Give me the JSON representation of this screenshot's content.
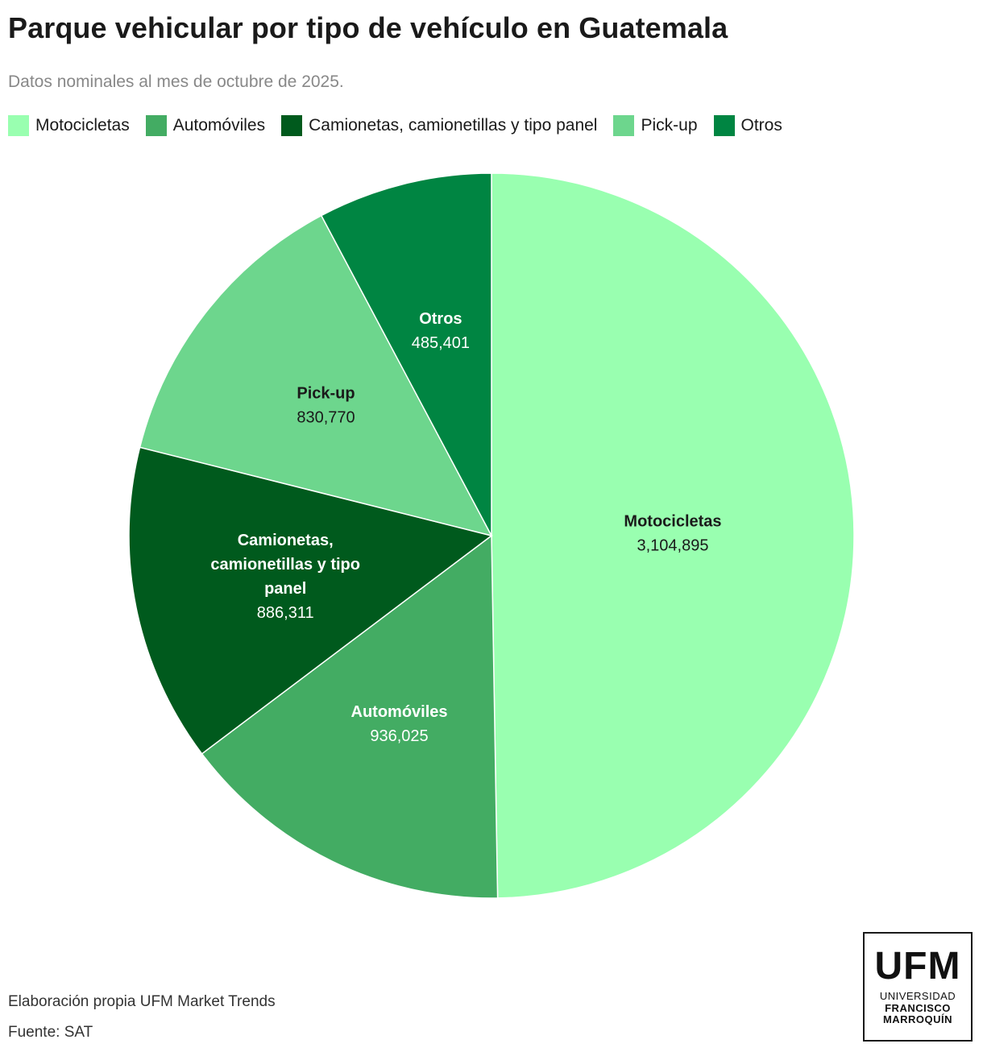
{
  "header": {
    "title": "Parque vehicular por tipo de vehículo en Guatemala",
    "subtitle": "Datos nominales al mes de octubre de 2025."
  },
  "chart_data": {
    "type": "pie",
    "title": "Parque vehicular por tipo de vehículo en Guatemala",
    "subtitle": "Datos nominales al mes de octubre de 2025.",
    "legend_position": "top-left",
    "slices": [
      {
        "name": "Motocicletas",
        "label_lines": [
          "Motocicletas"
        ],
        "value": 3104895,
        "value_label": "3,104,895",
        "color": "#99ffb0",
        "label_color": "#1a1a1a"
      },
      {
        "name": "Automóviles",
        "label_lines": [
          "Automóviles"
        ],
        "value": 936025,
        "value_label": "936,025",
        "color": "#43ac63",
        "label_color": "#ffffff"
      },
      {
        "name": "Camionetas, camionetillas y tipo panel",
        "label_lines": [
          "Camionetas,",
          "camionetillas y tipo",
          "panel"
        ],
        "value": 886311,
        "value_label": "886,311",
        "color": "#005a1d",
        "label_color": "#ffffff"
      },
      {
        "name": "Pick-up",
        "label_lines": [
          "Pick-up"
        ],
        "value": 830770,
        "value_label": "830,770",
        "color": "#6dd68d",
        "label_color": "#1a1a1a"
      },
      {
        "name": "Otros",
        "label_lines": [
          "Otros"
        ],
        "value": 485401,
        "value_label": "485,401",
        "color": "#008542",
        "label_color": "#ffffff"
      }
    ]
  },
  "footer": {
    "credit": "Elaboración propia UFM Market Trends",
    "source": "Fuente: SAT"
  },
  "logo": {
    "big": "UFM",
    "line1": "UNIVERSIDAD",
    "line2": "FRANCISCO",
    "line3": "MARROQUÍN"
  }
}
